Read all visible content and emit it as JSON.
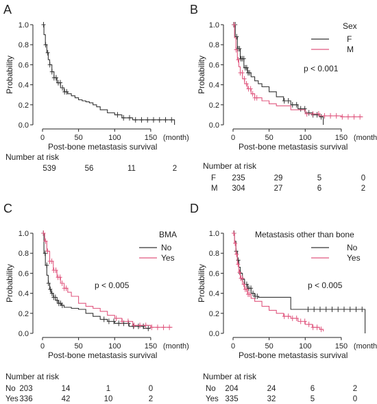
{
  "colors": {
    "black_series": "#333333",
    "pink_series": "#e0577f",
    "axis": "#222222"
  },
  "chart_data": [
    {
      "panel": "A",
      "type": "line",
      "xlabel": "Post-bone metastasis survival",
      "xunit": "(month)",
      "ylabel": "Probability",
      "xlim": [
        0,
        190
      ],
      "ylim": [
        0,
        1.0
      ],
      "xticks": [
        0,
        50,
        100,
        150
      ],
      "yticks": [
        0.0,
        0.2,
        0.4,
        0.6,
        0.8,
        1.0
      ],
      "xtick_labels": [
        "0",
        "50",
        "100",
        "150"
      ],
      "ytick_labels": [
        "0.0",
        "0.2",
        "0.4",
        "0.6",
        "0.8",
        "1.0"
      ],
      "series": [
        {
          "color": "#333333",
          "x": [
            0,
            2,
            4,
            6,
            8,
            10,
            13,
            16,
            20,
            25,
            30,
            35,
            40,
            45,
            50,
            55,
            60,
            65,
            70,
            75,
            80,
            90,
            100,
            110,
            125,
            180,
            183
          ],
          "y": [
            1.0,
            0.9,
            0.8,
            0.72,
            0.65,
            0.6,
            0.53,
            0.47,
            0.42,
            0.37,
            0.33,
            0.31,
            0.29,
            0.27,
            0.25,
            0.24,
            0.23,
            0.22,
            0.2,
            0.18,
            0.15,
            0.12,
            0.1,
            0.07,
            0.05,
            0.05,
            0.0
          ]
        }
      ],
      "risk_table": {
        "title": "Number at risk",
        "rows": [
          {
            "label": "",
            "values": [
              "539",
              "56",
              "11",
              "2"
            ]
          }
        ]
      }
    },
    {
      "panel": "B",
      "type": "line",
      "xlabel": "Post-bone metastasis survival",
      "xunit": "(month)",
      "ylabel": "Probability",
      "xlim": [
        0,
        190
      ],
      "ylim": [
        0,
        1.0
      ],
      "xticks": [
        0,
        50,
        100,
        150
      ],
      "yticks": [
        0.0,
        0.2,
        0.4,
        0.6,
        0.8,
        1.0
      ],
      "xtick_labels": [
        "0",
        "50",
        "100",
        "150"
      ],
      "ytick_labels": [
        "0.0",
        "0.2",
        "0.4",
        "0.6",
        "0.8",
        "1.0"
      ],
      "legend": {
        "title": "Sex",
        "position": "top-right"
      },
      "annotation": "p < 0.001",
      "series": [
        {
          "name": "F",
          "color": "#333333",
          "x": [
            0,
            3,
            6,
            10,
            15,
            20,
            25,
            30,
            35,
            40,
            50,
            60,
            70,
            80,
            90,
            100,
            110,
            120,
            125
          ],
          "y": [
            1.0,
            0.88,
            0.76,
            0.66,
            0.57,
            0.52,
            0.48,
            0.44,
            0.41,
            0.38,
            0.33,
            0.28,
            0.24,
            0.2,
            0.16,
            0.12,
            0.1,
            0.08,
            0.0
          ]
        },
        {
          "name": "M",
          "color": "#e0577f",
          "x": [
            0,
            2,
            4,
            6,
            8,
            10,
            13,
            16,
            20,
            25,
            30,
            40,
            50,
            60,
            80,
            100,
            120,
            150,
            180
          ],
          "y": [
            1.0,
            0.87,
            0.75,
            0.65,
            0.58,
            0.52,
            0.46,
            0.41,
            0.36,
            0.31,
            0.27,
            0.24,
            0.21,
            0.19,
            0.15,
            0.11,
            0.09,
            0.08,
            0.08
          ]
        }
      ],
      "risk_table": {
        "title": "Number at risk",
        "rows": [
          {
            "label": "F",
            "values": [
              "235",
              "29",
              "5",
              "0"
            ]
          },
          {
            "label": "M",
            "values": [
              "304",
              "27",
              "6",
              "2"
            ]
          }
        ]
      }
    },
    {
      "panel": "C",
      "type": "line",
      "xlabel": "Post-bone metastasis survival",
      "xunit": "(month)",
      "ylabel": "Probability",
      "xlim": [
        0,
        190
      ],
      "ylim": [
        0,
        1.0
      ],
      "xticks": [
        0,
        50,
        100,
        150
      ],
      "yticks": [
        0.0,
        0.2,
        0.4,
        0.6,
        0.8,
        1.0
      ],
      "xtick_labels": [
        "0",
        "50",
        "100",
        "150"
      ],
      "ytick_labels": [
        "0.0",
        "0.2",
        "0.4",
        "0.6",
        "0.8",
        "1.0"
      ],
      "legend": {
        "title": "BMA",
        "position": "top-right"
      },
      "annotation": "p < 0.005",
      "series": [
        {
          "name": "No",
          "color": "#333333",
          "x": [
            0,
            2,
            4,
            6,
            8,
            10,
            12,
            15,
            18,
            22,
            26,
            30,
            40,
            50,
            60,
            70,
            80,
            90,
            100,
            120,
            140,
            150
          ],
          "y": [
            1.0,
            0.8,
            0.68,
            0.58,
            0.5,
            0.44,
            0.4,
            0.36,
            0.33,
            0.3,
            0.28,
            0.26,
            0.25,
            0.24,
            0.2,
            0.17,
            0.14,
            0.12,
            0.1,
            0.07,
            0.05,
            0.05
          ]
        },
        {
          "name": "Yes",
          "color": "#e0577f",
          "x": [
            0,
            3,
            6,
            10,
            15,
            20,
            25,
            30,
            35,
            40,
            50,
            60,
            70,
            80,
            90,
            100,
            110,
            125,
            150,
            180
          ],
          "y": [
            1.0,
            0.92,
            0.82,
            0.72,
            0.63,
            0.56,
            0.5,
            0.45,
            0.41,
            0.37,
            0.3,
            0.27,
            0.25,
            0.22,
            0.18,
            0.15,
            0.12,
            0.08,
            0.06,
            0.06
          ]
        }
      ],
      "risk_table": {
        "title": "Number at risk",
        "rows": [
          {
            "label": "No",
            "values": [
              "203",
              "14",
              "1",
              "0"
            ]
          },
          {
            "label": "Yes",
            "values": [
              "336",
              "42",
              "10",
              "2"
            ]
          }
        ]
      }
    },
    {
      "panel": "D",
      "type": "line",
      "xlabel": "Post-bone metastasis survival",
      "xunit": "(month)",
      "ylabel": "Probability",
      "xlim": [
        0,
        190
      ],
      "ylim": [
        0,
        1.0
      ],
      "xticks": [
        0,
        50,
        100,
        150
      ],
      "yticks": [
        0.0,
        0.2,
        0.4,
        0.6,
        0.8,
        1.0
      ],
      "xtick_labels": [
        "0",
        "50",
        "100",
        "150"
      ],
      "ytick_labels": [
        "0.0",
        "0.2",
        "0.4",
        "0.6",
        "0.8",
        "1.0"
      ],
      "legend": {
        "title": "Metastasis other than bone",
        "position": "top-right"
      },
      "annotation": "p < 0.005",
      "series": [
        {
          "name": "No",
          "color": "#333333",
          "x": [
            0,
            2,
            4,
            6,
            8,
            10,
            13,
            16,
            20,
            25,
            30,
            35,
            40,
            50,
            60,
            70,
            80,
            90,
            100,
            120,
            150,
            180,
            183
          ],
          "y": [
            1.0,
            0.92,
            0.82,
            0.73,
            0.66,
            0.6,
            0.54,
            0.49,
            0.45,
            0.4,
            0.37,
            0.36,
            0.36,
            0.36,
            0.36,
            0.36,
            0.24,
            0.24,
            0.24,
            0.24,
            0.24,
            0.24,
            0.0
          ]
        },
        {
          "name": "Yes",
          "color": "#e0577f",
          "x": [
            0,
            2,
            4,
            6,
            8,
            10,
            13,
            16,
            20,
            25,
            30,
            40,
            50,
            60,
            70,
            80,
            90,
            100,
            110,
            120,
            125
          ],
          "y": [
            1.0,
            0.9,
            0.79,
            0.69,
            0.61,
            0.55,
            0.49,
            0.44,
            0.39,
            0.35,
            0.32,
            0.27,
            0.23,
            0.2,
            0.17,
            0.15,
            0.12,
            0.09,
            0.06,
            0.04,
            0.02
          ]
        }
      ],
      "risk_table": {
        "title": "Number at risk",
        "rows": [
          {
            "label": "No",
            "values": [
              "204",
              "24",
              "6",
              "2"
            ]
          },
          {
            "label": "Yes",
            "values": [
              "335",
              "32",
              "5",
              "0"
            ]
          }
        ]
      }
    }
  ]
}
